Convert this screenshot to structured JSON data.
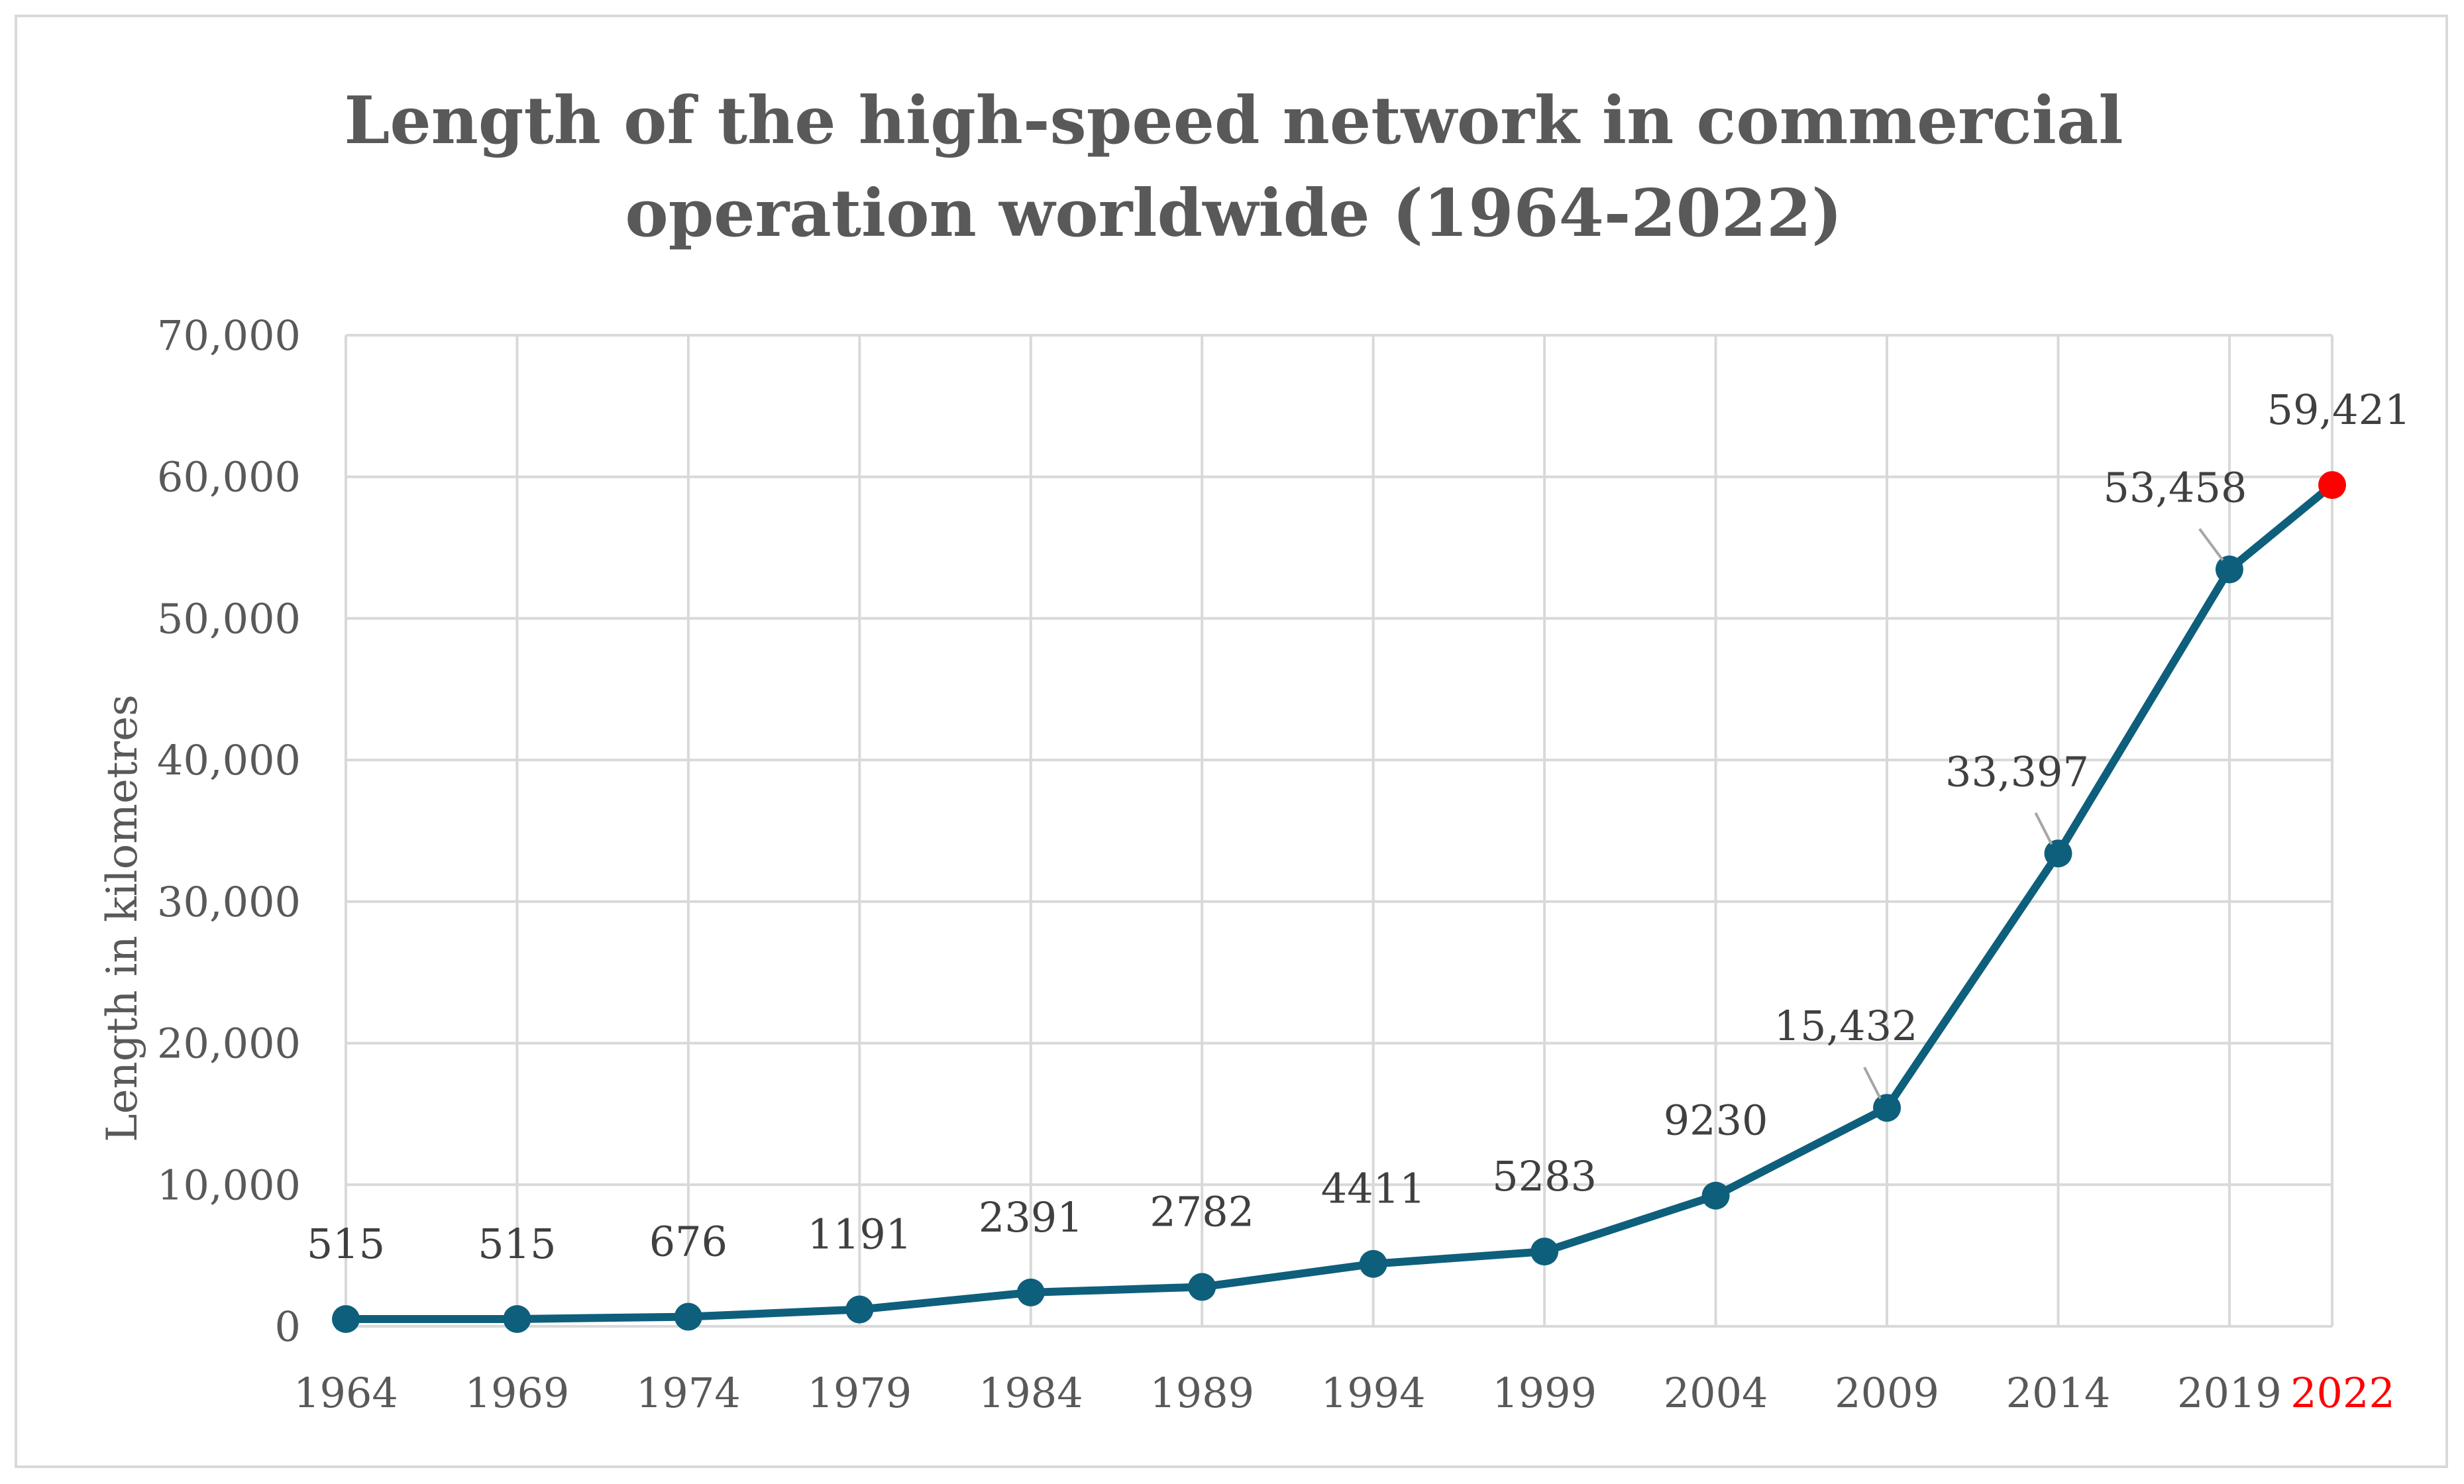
{
  "chart_data": {
    "type": "line",
    "title": "Length of the high-speed network in commercial operation worldwide (1964-2022)",
    "title_lines": [
      "Length of the high-speed network in commercial",
      "operation worldwide (1964-2022)"
    ],
    "xlabel": "",
    "ylabel": "Length in kilometres",
    "ylim": [
      0,
      70000
    ],
    "y_ticks": [
      0,
      10000,
      20000,
      30000,
      40000,
      50000,
      60000,
      70000
    ],
    "y_tick_labels": [
      "0",
      "10,000",
      "20,000",
      "30,000",
      "40,000",
      "50,000",
      "60,000",
      "70,000"
    ],
    "grid": true,
    "x_tick_years": [
      1964,
      1969,
      1974,
      1979,
      1984,
      1989,
      1994,
      1999,
      2004,
      2009,
      2014,
      2019,
      2022
    ],
    "categories": [
      "1964",
      "1969",
      "1974",
      "1979",
      "1984",
      "1989",
      "1994",
      "1999",
      "2004",
      "2009",
      "2014",
      "2019",
      "2022"
    ],
    "x": [
      1964,
      1969,
      1974,
      1979,
      1984,
      1989,
      1994,
      1999,
      2004,
      2009,
      2014,
      2019,
      2022
    ],
    "series": [
      {
        "name": "Length in kilometres",
        "values": [
          515,
          515,
          676,
          1191,
          2391,
          2782,
          4411,
          5283,
          9230,
          15432,
          33397,
          53458,
          59421
        ],
        "labels": [
          "515",
          "515",
          "676",
          "1191",
          "2391",
          "2782",
          "4411",
          "5283",
          "9230",
          "15,432",
          "33,397",
          "53,458",
          "59,421"
        ]
      }
    ],
    "highlight": {
      "category": "2022",
      "color": "#ff0000"
    },
    "colors": {
      "line": "#0e5f7c",
      "marker": "#0e5f7c",
      "highlight": "#ff0000",
      "grid": "#d9d9d9",
      "text": "#595959",
      "border": "#d9d9d9"
    }
  }
}
